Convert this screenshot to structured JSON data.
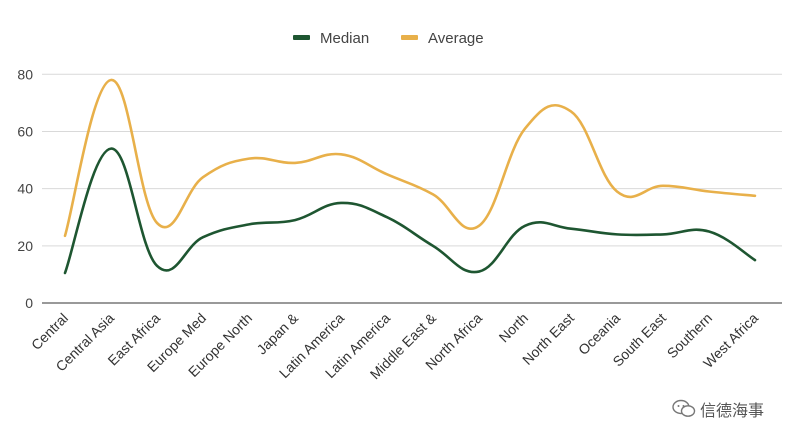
{
  "chart_data": {
    "type": "line",
    "title": "",
    "xlabel": "",
    "ylabel": "",
    "ylim": [
      0,
      85
    ],
    "yticks": [
      0,
      20,
      40,
      60,
      80
    ],
    "grid": true,
    "legend_position": "top-center",
    "curve": "smooth",
    "categories": [
      "Central",
      "Central Asia",
      "East Africa",
      "Europe Med",
      "Europe North",
      "Japan &",
      "Latin America",
      "Latin America",
      "Middle East &",
      "North Africa",
      "North",
      "North East",
      "Oceania",
      "South East",
      "Southern",
      "West Africa"
    ],
    "series": [
      {
        "name": "Median",
        "color": "#1e5631",
        "values": [
          10.5,
          54,
          13,
          23,
          27.5,
          29,
          35,
          30,
          20,
          11,
          27,
          26,
          24,
          24,
          25,
          15
        ]
      },
      {
        "name": "Average",
        "color": "#e8b04a",
        "values": [
          23.5,
          78,
          28,
          44,
          50.5,
          49,
          52,
          45,
          38,
          27,
          61,
          67,
          39,
          41,
          39,
          37.5
        ]
      }
    ]
  },
  "watermark": {
    "text": "信德海事",
    "icon": "wechat-icon"
  }
}
